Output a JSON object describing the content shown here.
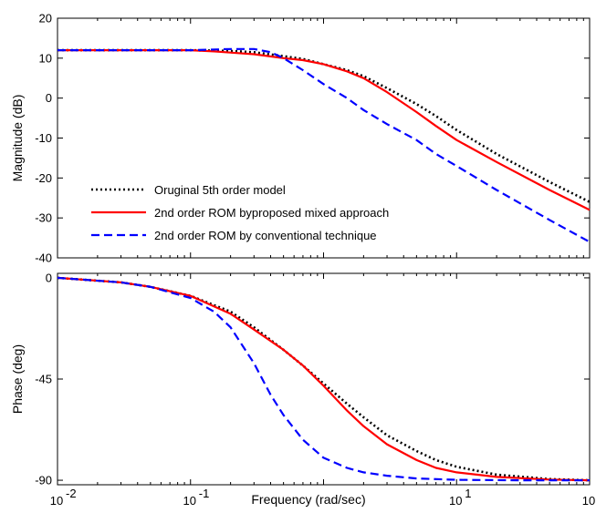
{
  "chart_data": [
    {
      "type": "line",
      "panel": "magnitude",
      "title": "",
      "ylabel": "Magnitude (dB)",
      "xlabel": "",
      "xscale": "log",
      "xlim": [
        0.01,
        100
      ],
      "ylim": [
        -40,
        20
      ],
      "yticks": [
        20,
        10,
        0,
        -10,
        -20,
        -30,
        -40
      ],
      "grid": false,
      "legend": "bottom-left",
      "series": [
        {
          "name": "Oruginal 5th order model",
          "color": "#000000",
          "style": "dotted",
          "x": [
            0.01,
            0.03,
            0.1,
            0.2,
            0.3,
            0.5,
            0.7,
            1,
            1.5,
            2,
            3,
            5,
            7,
            10,
            20,
            50,
            100
          ],
          "y": [
            12,
            12,
            12,
            11.8,
            11.5,
            10.5,
            9.8,
            8.5,
            7,
            5.5,
            2.5,
            -1.5,
            -4.5,
            -8,
            -14,
            -21,
            -26
          ]
        },
        {
          "name": "2nd order ROM byproposed mixed approach",
          "color": "#ff0000",
          "style": "solid",
          "x": [
            0.01,
            0.03,
            0.1,
            0.15,
            0.2,
            0.3,
            0.5,
            0.7,
            1,
            1.5,
            2,
            3,
            5,
            7,
            10,
            20,
            50,
            100
          ],
          "y": [
            12,
            12,
            12,
            11.7,
            11.4,
            11,
            10,
            9.5,
            8.5,
            6.7,
            5,
            1.5,
            -3.5,
            -7,
            -10.5,
            -16,
            -23,
            -28
          ]
        },
        {
          "name": "2nd order ROM by conventional technique",
          "color": "#0000ff",
          "style": "dashed",
          "x": [
            0.01,
            0.03,
            0.1,
            0.2,
            0.3,
            0.4,
            0.5,
            0.7,
            1,
            1.5,
            2,
            3,
            5,
            7,
            10,
            20,
            50,
            100
          ],
          "y": [
            12,
            12,
            12,
            12.3,
            12.3,
            11.5,
            10,
            7,
            3.5,
            0,
            -3,
            -6.5,
            -10.5,
            -14,
            -17,
            -23,
            -30.5,
            -36
          ]
        }
      ]
    },
    {
      "type": "line",
      "panel": "phase",
      "title": "",
      "ylabel": "Phase (deg)",
      "xlabel": "Frequency (rad/sec)",
      "xscale": "log",
      "xlim": [
        0.01,
        100
      ],
      "ylim": [
        -92,
        2
      ],
      "yticks": [
        0,
        -45,
        -90
      ],
      "xticks": [
        {
          "value": 0.01,
          "base": "10",
          "exp": "-2"
        },
        {
          "value": 0.1,
          "base": "10",
          "exp": "-1"
        },
        {
          "value": 1,
          "base": "10",
          "exp": "0"
        },
        {
          "value": 10,
          "base": "10",
          "exp": "1"
        },
        {
          "value": 100,
          "base": "10",
          "exp": "2"
        }
      ],
      "grid": false,
      "series": [
        {
          "name": "Oruginal 5th order model",
          "color": "#000000",
          "style": "dotted",
          "x": [
            0.01,
            0.03,
            0.05,
            0.1,
            0.2,
            0.3,
            0.5,
            0.7,
            1,
            1.5,
            2,
            3,
            5,
            7,
            10,
            20,
            50,
            100
          ],
          "y": [
            0,
            -2,
            -4,
            -8,
            -15,
            -22,
            -32,
            -39,
            -47,
            -56,
            -62,
            -70,
            -77,
            -81,
            -84,
            -87.5,
            -89.5,
            -90
          ]
        },
        {
          "name": "2nd order ROM byproposed mixed approach",
          "color": "#ff0000",
          "style": "solid",
          "x": [
            0.01,
            0.03,
            0.05,
            0.1,
            0.2,
            0.3,
            0.5,
            0.7,
            1,
            1.5,
            2,
            3,
            5,
            7,
            10,
            20,
            50,
            100
          ],
          "y": [
            0,
            -2,
            -4,
            -8,
            -16,
            -23,
            -32,
            -39,
            -48,
            -59,
            -66,
            -74,
            -81,
            -84.5,
            -86.5,
            -88.5,
            -89.7,
            -90
          ]
        },
        {
          "name": "2nd order ROM by conventional technique",
          "color": "#0000ff",
          "style": "dashed",
          "x": [
            0.01,
            0.03,
            0.05,
            0.1,
            0.15,
            0.2,
            0.3,
            0.4,
            0.5,
            0.7,
            1,
            1.5,
            2,
            3,
            5,
            10,
            30,
            100
          ],
          "y": [
            0,
            -2,
            -4,
            -9,
            -15,
            -22,
            -38,
            -52,
            -61,
            -72,
            -80,
            -84.5,
            -86.5,
            -88,
            -89.2,
            -89.8,
            -90,
            -90
          ]
        }
      ]
    }
  ]
}
